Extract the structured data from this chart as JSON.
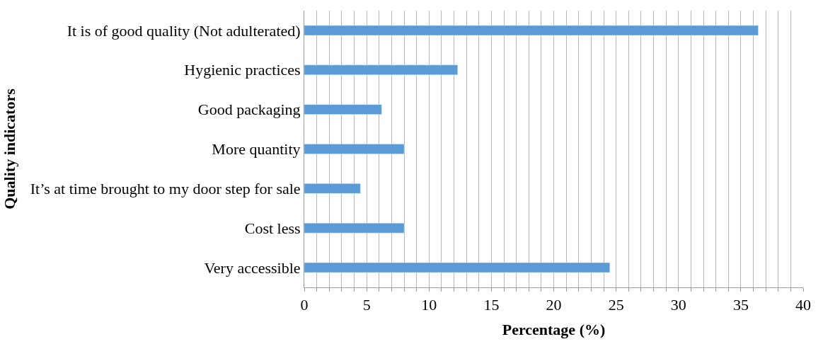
{
  "chart_data": {
    "type": "bar",
    "orientation": "horizontal",
    "xlabel": "Percentage (%)",
    "ylabel": "Quality indicators",
    "categories": [
      "It is of good quality (Not adulterated)",
      "Hygienic practices",
      "Good packaging",
      "More quantity",
      "It’s at time brought to my door step for sale",
      "Cost less",
      "Very accessible"
    ],
    "values": [
      36.4,
      12.3,
      6.2,
      8.0,
      4.5,
      8.0,
      24.5
    ],
    "color": "#5b9bd5",
    "xlim": [
      0,
      40
    ],
    "xticks": [
      0,
      {
        "value": 1,
        "label": null
      },
      {
        "value": 2,
        "label": null
      },
      {
        "value": 3,
        "label": null
      },
      {
        "value": 4,
        "label": null
      },
      5,
      {
        "value": 6,
        "label": null
      },
      {
        "value": 7,
        "label": null
      },
      {
        "value": 8,
        "label": null
      },
      {
        "value": 9,
        "label": null
      },
      10,
      {
        "value": 11,
        "label": null
      },
      {
        "value": 12,
        "label": null
      },
      {
        "value": 13,
        "label": null
      },
      {
        "value": 14,
        "label": null
      },
      15,
      {
        "value": 16,
        "label": null
      },
      {
        "value": 17,
        "label": null
      },
      {
        "value": 18,
        "label": null
      },
      {
        "value": 19,
        "label": null
      },
      20,
      {
        "value": 21,
        "label": null
      },
      {
        "value": 22,
        "label": null
      },
      {
        "value": 23,
        "label": null
      },
      {
        "value": 24,
        "label": null
      },
      25,
      {
        "value": 26,
        "label": null
      },
      {
        "value": 27,
        "label": null
      },
      {
        "value": 28,
        "label": null
      },
      {
        "value": 29,
        "label": null
      },
      30,
      {
        "value": 31,
        "label": null
      },
      {
        "value": 32,
        "label": null
      },
      {
        "value": 33,
        "label": null
      },
      {
        "value": 34,
        "label": null
      },
      35,
      {
        "value": 36,
        "label": null
      },
      {
        "value": 37,
        "label": null
      },
      {
        "value": 38,
        "label": null
      },
      {
        "value": 39,
        "label": null
      },
      40
    ],
    "grid": "x"
  }
}
